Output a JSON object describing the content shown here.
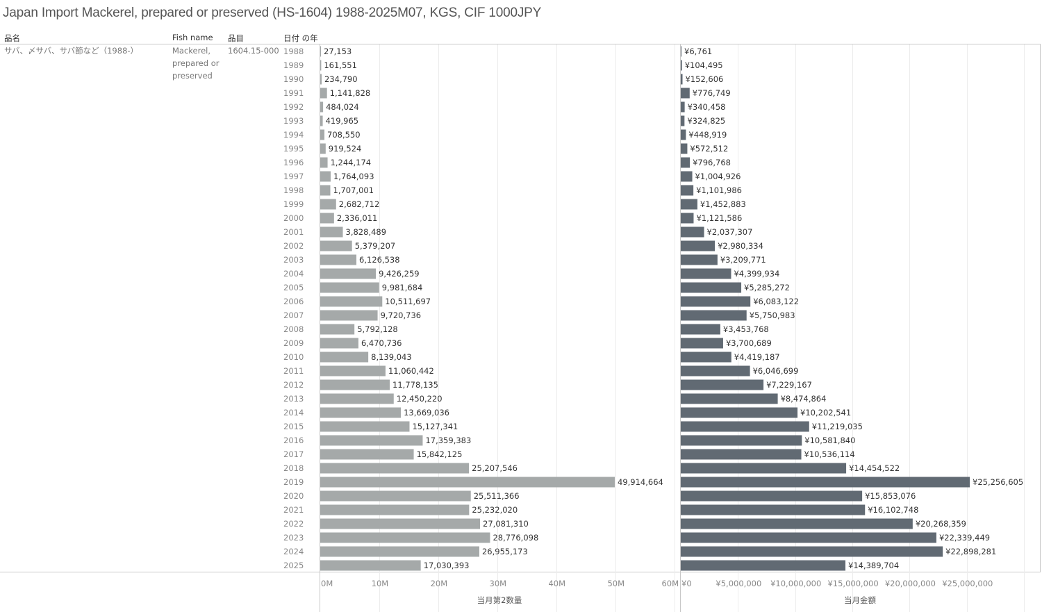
{
  "title": "Japan Import Mackerel, prepared or preserved (HS-1604) 1988-2025M07, KGS, CIF 1000JPY",
  "headers": {
    "product_name": "品名",
    "fish_name": "Fish name",
    "item_code": "品目",
    "year": "日付 の年"
  },
  "row": {
    "product_name": "サバ、〆サバ、サバ節など（1988-）",
    "fish_name_lines": [
      "Mackerel,",
      "prepared or",
      "preserved"
    ],
    "item_code": "1604.15-000"
  },
  "colors": {
    "quantity_bar": "#a5a9a9",
    "amount_bar": "#616a73",
    "grid": "#ececec",
    "border": "#c8c8c8"
  },
  "chart_data": [
    {
      "type": "bar",
      "orientation": "horizontal",
      "title": "",
      "xlabel": "当月第2数量",
      "ylabel": "日付 の年",
      "categories": [
        "1988",
        "1989",
        "1990",
        "1991",
        "1992",
        "1993",
        "1994",
        "1995",
        "1996",
        "1997",
        "1998",
        "1999",
        "2000",
        "2001",
        "2002",
        "2003",
        "2004",
        "2005",
        "2006",
        "2007",
        "2008",
        "2009",
        "2010",
        "2011",
        "2012",
        "2013",
        "2014",
        "2015",
        "2016",
        "2017",
        "2018",
        "2019",
        "2020",
        "2021",
        "2022",
        "2023",
        "2024",
        "2025"
      ],
      "values": [
        27153,
        161551,
        234790,
        1141828,
        484024,
        419965,
        708550,
        919524,
        1244174,
        1764093,
        1707001,
        2682712,
        2336011,
        3828489,
        5379207,
        6126538,
        9426259,
        9981684,
        10511697,
        9720736,
        5792128,
        6470736,
        8139043,
        11060442,
        11778135,
        12450220,
        13669036,
        15127341,
        17359383,
        15842125,
        25207546,
        49914664,
        25511366,
        25232020,
        27081310,
        28776098,
        26955173,
        17030393
      ],
      "label_prefix": "",
      "xlim": [
        0,
        60000000
      ],
      "ticks": [
        0,
        10000000,
        20000000,
        30000000,
        40000000,
        50000000,
        60000000
      ],
      "tick_labels": [
        "0M",
        "10M",
        "20M",
        "30M",
        "40M",
        "50M",
        "60M"
      ],
      "grid": true
    },
    {
      "type": "bar",
      "orientation": "horizontal",
      "title": "",
      "xlabel": "当月金額",
      "ylabel": "日付 の年",
      "categories": [
        "1988",
        "1989",
        "1990",
        "1991",
        "1992",
        "1993",
        "1994",
        "1995",
        "1996",
        "1997",
        "1998",
        "1999",
        "2000",
        "2001",
        "2002",
        "2003",
        "2004",
        "2005",
        "2006",
        "2007",
        "2008",
        "2009",
        "2010",
        "2011",
        "2012",
        "2013",
        "2014",
        "2015",
        "2016",
        "2017",
        "2018",
        "2019",
        "2020",
        "2021",
        "2022",
        "2023",
        "2024",
        "2025"
      ],
      "values": [
        6761,
        104495,
        152606,
        776749,
        340458,
        324825,
        448919,
        572512,
        796768,
        1004926,
        1101986,
        1452883,
        1121586,
        2037307,
        2980334,
        3209771,
        4399934,
        5285272,
        6083122,
        5750983,
        3453768,
        3700689,
        4419187,
        6046699,
        7229167,
        8474864,
        10202541,
        11219035,
        10581840,
        10536114,
        14454522,
        25256605,
        15853076,
        16102748,
        20268359,
        22339449,
        22898281,
        14389704
      ],
      "label_prefix": "¥",
      "xlim": [
        0,
        31000000
      ],
      "ticks": [
        0,
        5000000,
        10000000,
        15000000,
        20000000,
        25000000
      ],
      "tick_labels": [
        "¥0",
        "¥5,000,000",
        "¥10,000,000",
        "¥15,000,000",
        "¥20,000,000",
        "¥25,000,000"
      ],
      "grid": true
    }
  ]
}
